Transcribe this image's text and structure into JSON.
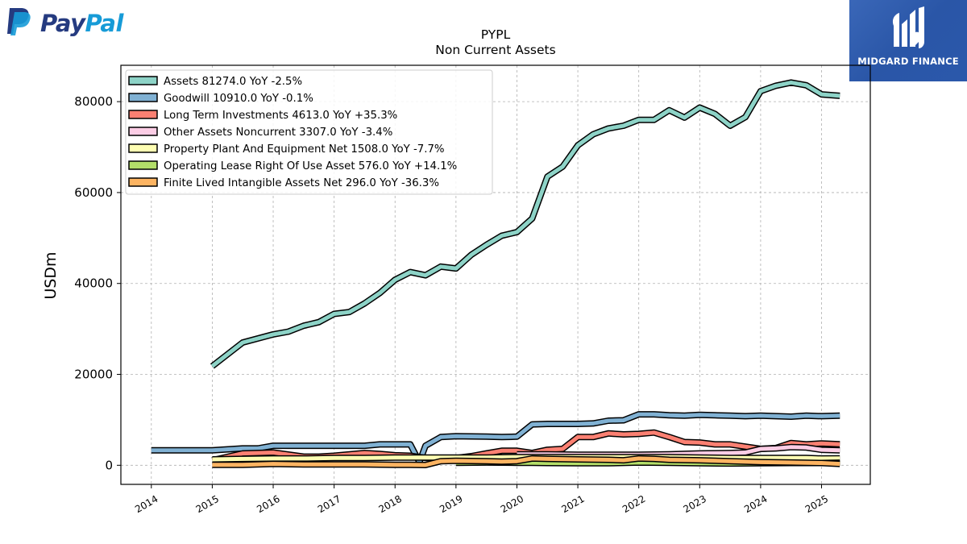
{
  "brand": {
    "left_logo_pay": "Pay",
    "left_logo_pal": "Pal",
    "right_logo_name": "MIDGARD FINANCE"
  },
  "chart_data": {
    "type": "line",
    "title": "PYPL",
    "subtitle": "Non Current  Assets",
    "xlabel": "",
    "ylabel": "USDm",
    "xlim": [
      2013.5,
      2025.8
    ],
    "ylim": [
      -4200,
      88000
    ],
    "x_ticks": [
      2014,
      2015,
      2016,
      2017,
      2018,
      2019,
      2020,
      2021,
      2022,
      2023,
      2024,
      2025
    ],
    "x_tick_labels": [
      "2014",
      "2015",
      "2016",
      "2017",
      "2018",
      "2019",
      "2020",
      "2021",
      "2022",
      "2023",
      "2024",
      "2025"
    ],
    "y_ticks": [
      0,
      20000,
      40000,
      60000,
      80000
    ],
    "y_tick_labels": [
      "0",
      "20000",
      "40000",
      "60000",
      "80000"
    ],
    "grid": true,
    "legend_position": "top-left",
    "series": [
      {
        "name": "Assets",
        "legend_label": "Assets  81274.0 YoY -2.5%",
        "color": "#8dd3c7",
        "points": [
          [
            2015.0,
            21800
          ],
          [
            2015.5,
            27000
          ],
          [
            2016.0,
            28800
          ],
          [
            2016.25,
            29400
          ],
          [
            2016.5,
            30700
          ],
          [
            2016.75,
            31500
          ],
          [
            2017.0,
            33300
          ],
          [
            2017.25,
            33700
          ],
          [
            2017.5,
            35600
          ],
          [
            2017.75,
            37900
          ],
          [
            2018.0,
            40800
          ],
          [
            2018.25,
            42500
          ],
          [
            2018.5,
            41800
          ],
          [
            2018.75,
            43700
          ],
          [
            2019.0,
            43300
          ],
          [
            2019.25,
            46300
          ],
          [
            2019.5,
            48500
          ],
          [
            2019.75,
            50500
          ],
          [
            2020.0,
            51300
          ],
          [
            2020.25,
            54300
          ],
          [
            2020.5,
            63500
          ],
          [
            2020.75,
            65700
          ],
          [
            2021.0,
            70400
          ],
          [
            2021.25,
            72800
          ],
          [
            2021.5,
            74100
          ],
          [
            2021.75,
            74700
          ],
          [
            2022.0,
            76000
          ],
          [
            2022.25,
            76000
          ],
          [
            2022.5,
            78100
          ],
          [
            2022.75,
            76500
          ],
          [
            2023.0,
            78700
          ],
          [
            2023.25,
            77300
          ],
          [
            2023.5,
            74700
          ],
          [
            2023.75,
            76600
          ],
          [
            2024.0,
            82300
          ],
          [
            2024.25,
            83500
          ],
          [
            2024.5,
            84200
          ],
          [
            2024.75,
            83600
          ],
          [
            2025.0,
            81600
          ],
          [
            2025.3,
            81274
          ]
        ]
      },
      {
        "name": "Goodwill",
        "legend_label": "Goodwill  10910.0 YoY -0.1%",
        "color": "#80b1d3",
        "points": [
          [
            2014.0,
            3300
          ],
          [
            2014.5,
            3300
          ],
          [
            2015.0,
            3300
          ],
          [
            2015.5,
            3700
          ],
          [
            2015.75,
            3700
          ],
          [
            2016.0,
            4300
          ],
          [
            2016.5,
            4300
          ],
          [
            2017.0,
            4300
          ],
          [
            2017.5,
            4300
          ],
          [
            2017.75,
            4600
          ],
          [
            2018.0,
            4600
          ],
          [
            2018.25,
            4600
          ],
          [
            2018.4,
            700
          ],
          [
            2018.5,
            4300
          ],
          [
            2018.75,
            6200
          ],
          [
            2019.0,
            6400
          ],
          [
            2019.5,
            6300
          ],
          [
            2019.75,
            6200
          ],
          [
            2020.0,
            6300
          ],
          [
            2020.25,
            9000
          ],
          [
            2020.5,
            9100
          ],
          [
            2020.75,
            9100
          ],
          [
            2021.0,
            9100
          ],
          [
            2021.25,
            9200
          ],
          [
            2021.5,
            9800
          ],
          [
            2021.75,
            9900
          ],
          [
            2022.0,
            11200
          ],
          [
            2022.25,
            11200
          ],
          [
            2022.5,
            11000
          ],
          [
            2022.75,
            10900
          ],
          [
            2023.0,
            11100
          ],
          [
            2023.25,
            11000
          ],
          [
            2023.5,
            10900
          ],
          [
            2023.75,
            10800
          ],
          [
            2024.0,
            10900
          ],
          [
            2024.25,
            10800
          ],
          [
            2024.5,
            10700
          ],
          [
            2024.75,
            10900
          ],
          [
            2025.0,
            10800
          ],
          [
            2025.3,
            10910
          ]
        ]
      },
      {
        "name": "Long Term Investments",
        "legend_label": "Long Term Investments  4613.0 YoY +35.3%",
        "color": "#fb8072",
        "points": [
          [
            2015.0,
            1100
          ],
          [
            2015.5,
            2600
          ],
          [
            2016.0,
            2800
          ],
          [
            2016.5,
            1900
          ],
          [
            2016.75,
            1900
          ],
          [
            2017.0,
            2100
          ],
          [
            2017.5,
            2700
          ],
          [
            2017.75,
            2500
          ],
          [
            2018.0,
            2200
          ],
          [
            2018.25,
            2100
          ],
          [
            2018.5,
            1600
          ],
          [
            2018.75,
            1600
          ],
          [
            2019.0,
            1600
          ],
          [
            2019.25,
            2000
          ],
          [
            2019.5,
            2600
          ],
          [
            2019.75,
            3200
          ],
          [
            2020.0,
            3200
          ],
          [
            2020.25,
            2700
          ],
          [
            2020.5,
            3400
          ],
          [
            2020.75,
            3600
          ],
          [
            2021.0,
            6200
          ],
          [
            2021.25,
            6200
          ],
          [
            2021.5,
            7000
          ],
          [
            2021.75,
            6800
          ],
          [
            2022.0,
            6900
          ],
          [
            2022.25,
            7200
          ],
          [
            2022.5,
            6200
          ],
          [
            2022.75,
            5100
          ],
          [
            2023.0,
            5000
          ],
          [
            2023.25,
            4600
          ],
          [
            2023.5,
            4600
          ],
          [
            2023.75,
            4100
          ],
          [
            2024.0,
            3600
          ],
          [
            2024.25,
            3800
          ],
          [
            2024.5,
            4900
          ],
          [
            2024.75,
            4600
          ],
          [
            2025.0,
            4800
          ],
          [
            2025.3,
            4613
          ]
        ]
      },
      {
        "name": "Other Assets Noncurrent",
        "legend_label": "Other Assets Noncurrent  3307.0 YoY -3.4%",
        "color": "#fccde5",
        "points": [
          [
            2020.0,
            2400
          ],
          [
            2020.5,
            2400
          ],
          [
            2021.0,
            2300
          ],
          [
            2021.5,
            2300
          ],
          [
            2022.0,
            2300
          ],
          [
            2022.5,
            2400
          ],
          [
            2023.0,
            2600
          ],
          [
            2023.5,
            2700
          ],
          [
            2023.75,
            2800
          ],
          [
            2024.0,
            3600
          ],
          [
            2024.25,
            3700
          ],
          [
            2024.5,
            4000
          ],
          [
            2024.75,
            3900
          ],
          [
            2025.0,
            3400
          ],
          [
            2025.3,
            3307
          ]
        ]
      },
      {
        "name": "Property Plant And Equipment Net",
        "legend_label": "Property Plant And Equipment Net  1508.0 YoY -7.7%",
        "color": "#ffffb3",
        "points": [
          [
            2015.0,
            1300
          ],
          [
            2015.5,
            1400
          ],
          [
            2016.0,
            1500
          ],
          [
            2016.5,
            1500
          ],
          [
            2017.0,
            1600
          ],
          [
            2017.5,
            1600
          ],
          [
            2018.0,
            1700
          ],
          [
            2018.5,
            1700
          ],
          [
            2019.0,
            1700
          ],
          [
            2019.5,
            1700
          ],
          [
            2020.0,
            1800
          ],
          [
            2020.5,
            1800
          ],
          [
            2021.0,
            1800
          ],
          [
            2021.5,
            1800
          ],
          [
            2022.0,
            1800
          ],
          [
            2022.5,
            1800
          ],
          [
            2023.0,
            1700
          ],
          [
            2023.5,
            1600
          ],
          [
            2024.0,
            1600
          ],
          [
            2024.5,
            1600
          ],
          [
            2024.75,
            1600
          ],
          [
            2025.0,
            1500
          ],
          [
            2025.3,
            1508
          ]
        ]
      },
      {
        "name": "Operating Lease Right Of Use Asset",
        "legend_label": "Operating Lease Right Of Use Asset  576.0 YoY +14.1%",
        "color": "#b3de69",
        "points": [
          [
            2019.0,
            550
          ],
          [
            2019.5,
            600
          ],
          [
            2020.0,
            550
          ],
          [
            2020.25,
            550
          ],
          [
            2020.5,
            500
          ],
          [
            2021.0,
            450
          ],
          [
            2021.5,
            450
          ],
          [
            2022.0,
            600
          ],
          [
            2022.5,
            550
          ],
          [
            2023.0,
            450
          ],
          [
            2023.5,
            400
          ],
          [
            2024.0,
            450
          ],
          [
            2024.5,
            500
          ],
          [
            2025.0,
            500
          ],
          [
            2025.3,
            576
          ]
        ]
      },
      {
        "name": "Finite Lived Intangible Assets Net",
        "legend_label": "Finite Lived Intangible Assets Net  296.0 YoY -36.3%",
        "color": "#fdb462",
        "points": [
          [
            2015.0,
            100
          ],
          [
            2015.5,
            100
          ],
          [
            2016.0,
            300
          ],
          [
            2016.5,
            200
          ],
          [
            2017.0,
            200
          ],
          [
            2017.5,
            200
          ],
          [
            2018.0,
            100
          ],
          [
            2018.25,
            100
          ],
          [
            2018.5,
            50
          ],
          [
            2018.75,
            900
          ],
          [
            2019.0,
            1000
          ],
          [
            2019.5,
            900
          ],
          [
            2019.75,
            800
          ],
          [
            2020.0,
            900
          ],
          [
            2020.25,
            1500
          ],
          [
            2020.5,
            1400
          ],
          [
            2021.0,
            1300
          ],
          [
            2021.5,
            1200
          ],
          [
            2021.75,
            1100
          ],
          [
            2022.0,
            1500
          ],
          [
            2022.25,
            1400
          ],
          [
            2022.5,
            1200
          ],
          [
            2023.0,
            1100
          ],
          [
            2023.5,
            900
          ],
          [
            2024.0,
            700
          ],
          [
            2024.5,
            600
          ],
          [
            2025.0,
            500
          ],
          [
            2025.3,
            296
          ]
        ]
      }
    ]
  }
}
